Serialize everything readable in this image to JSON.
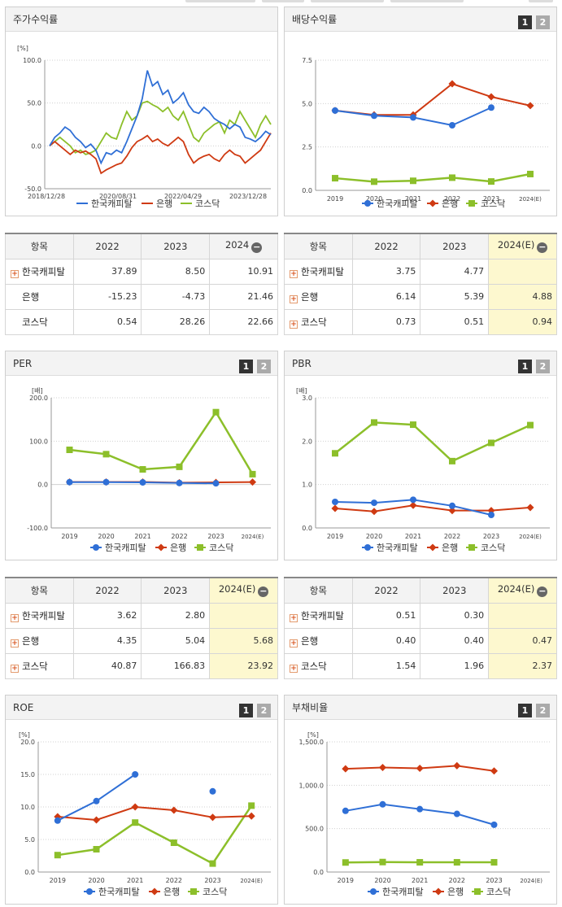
{
  "colors": {
    "kc": "#2f6fd6",
    "bank": "#cf3a12",
    "kosdaq": "#8cbf2a"
  },
  "legend": [
    "한국캐피탈",
    "은행",
    "코스닥"
  ],
  "panels": {
    "stock": {
      "title": "주가수익률"
    },
    "div": {
      "title": "배당수익률"
    },
    "per": {
      "title": "PER"
    },
    "pbr": {
      "title": "PBR"
    },
    "roe": {
      "title": "ROE"
    },
    "debt": {
      "title": "부채비율"
    }
  },
  "btn1": "1",
  "btn2": "2",
  "tables": {
    "t1": {
      "head": [
        "항목",
        "2022",
        "2023",
        "2024"
      ],
      "rows": [
        {
          "label": "한국캐피탈",
          "plus": true,
          "v": [
            "37.89",
            "8.50",
            "10.91"
          ]
        },
        {
          "label": "은행",
          "plus": false,
          "v": [
            "-15.23",
            "-4.73",
            "21.46"
          ]
        },
        {
          "label": "코스닥",
          "plus": false,
          "v": [
            "0.54",
            "28.26",
            "22.66"
          ]
        }
      ]
    },
    "t2": {
      "head": [
        "항목",
        "2022",
        "2023",
        "2024(E)"
      ],
      "rows": [
        {
          "label": "한국캐피탈",
          "plus": true,
          "v": [
            "3.75",
            "4.77",
            ""
          ]
        },
        {
          "label": "은행",
          "plus": true,
          "v": [
            "6.14",
            "5.39",
            "4.88"
          ]
        },
        {
          "label": "코스닥",
          "plus": true,
          "v": [
            "0.73",
            "0.51",
            "0.94"
          ]
        }
      ]
    },
    "t3": {
      "head": [
        "항목",
        "2022",
        "2023",
        "2024(E)"
      ],
      "rows": [
        {
          "label": "한국캐피탈",
          "plus": true,
          "v": [
            "3.62",
            "2.80",
            ""
          ]
        },
        {
          "label": "은행",
          "plus": true,
          "v": [
            "4.35",
            "5.04",
            "5.68"
          ]
        },
        {
          "label": "코스닥",
          "plus": true,
          "v": [
            "40.87",
            "166.83",
            "23.92"
          ]
        }
      ]
    },
    "t4": {
      "head": [
        "항목",
        "2022",
        "2023",
        "2024(E)"
      ],
      "rows": [
        {
          "label": "한국캐피탈",
          "plus": true,
          "v": [
            "0.51",
            "0.30",
            ""
          ]
        },
        {
          "label": "은행",
          "plus": true,
          "v": [
            "0.40",
            "0.40",
            "0.47"
          ]
        },
        {
          "label": "코스닥",
          "plus": true,
          "v": [
            "1.54",
            "1.96",
            "2.37"
          ]
        }
      ]
    }
  },
  "chart_data": [
    {
      "id": "stock",
      "type": "line",
      "unit": "[%]",
      "ylim": [
        -50,
        100
      ],
      "yticks": [
        "100.0",
        "50.0",
        "0.0",
        "-50.0"
      ],
      "xticks": [
        "2018/12/28",
        "2020/08/31",
        "2022/04/29",
        "2023/12/28"
      ],
      "x_count": 130,
      "series": [
        {
          "name": "한국캐피탈",
          "key": "kc",
          "points": [
            [
              0,
              0
            ],
            [
              3,
              10
            ],
            [
              6,
              15
            ],
            [
              9,
              22
            ],
            [
              12,
              18
            ],
            [
              15,
              10
            ],
            [
              18,
              5
            ],
            [
              21,
              -2
            ],
            [
              24,
              2
            ],
            [
              27,
              -5
            ],
            [
              30,
              -20
            ],
            [
              33,
              -8
            ],
            [
              36,
              -10
            ],
            [
              39,
              -5
            ],
            [
              42,
              -8
            ],
            [
              45,
              5
            ],
            [
              48,
              20
            ],
            [
              51,
              35
            ],
            [
              54,
              55
            ],
            [
              57,
              88
            ],
            [
              60,
              70
            ],
            [
              63,
              75
            ],
            [
              66,
              60
            ],
            [
              69,
              65
            ],
            [
              72,
              50
            ],
            [
              75,
              55
            ],
            [
              78,
              62
            ],
            [
              81,
              48
            ],
            [
              84,
              40
            ],
            [
              87,
              38
            ],
            [
              90,
              45
            ],
            [
              93,
              40
            ],
            [
              96,
              32
            ],
            [
              99,
              28
            ],
            [
              102,
              25
            ],
            [
              105,
              20
            ],
            [
              108,
              25
            ],
            [
              111,
              22
            ],
            [
              114,
              10
            ],
            [
              117,
              8
            ],
            [
              120,
              5
            ],
            [
              123,
              10
            ],
            [
              126,
              17
            ],
            [
              129,
              13
            ]
          ]
        },
        {
          "name": "은행",
          "key": "bank",
          "points": [
            [
              0,
              0
            ],
            [
              3,
              5
            ],
            [
              6,
              0
            ],
            [
              9,
              -5
            ],
            [
              12,
              -10
            ],
            [
              15,
              -5
            ],
            [
              18,
              -8
            ],
            [
              21,
              -6
            ],
            [
              24,
              -10
            ],
            [
              27,
              -15
            ],
            [
              30,
              -32
            ],
            [
              33,
              -28
            ],
            [
              36,
              -25
            ],
            [
              39,
              -22
            ],
            [
              42,
              -20
            ],
            [
              45,
              -12
            ],
            [
              48,
              -2
            ],
            [
              51,
              5
            ],
            [
              54,
              8
            ],
            [
              57,
              12
            ],
            [
              60,
              5
            ],
            [
              63,
              8
            ],
            [
              66,
              3
            ],
            [
              69,
              0
            ],
            [
              72,
              5
            ],
            [
              75,
              10
            ],
            [
              78,
              5
            ],
            [
              81,
              -10
            ],
            [
              84,
              -20
            ],
            [
              87,
              -15
            ],
            [
              90,
              -12
            ],
            [
              93,
              -10
            ],
            [
              96,
              -15
            ],
            [
              99,
              -18
            ],
            [
              102,
              -10
            ],
            [
              105,
              -5
            ],
            [
              108,
              -10
            ],
            [
              111,
              -12
            ],
            [
              114,
              -20
            ],
            [
              117,
              -15
            ],
            [
              120,
              -10
            ],
            [
              123,
              -5
            ],
            [
              126,
              5
            ],
            [
              129,
              15
            ]
          ]
        },
        {
          "name": "코스닥",
          "key": "kosdaq",
          "points": [
            [
              0,
              0
            ],
            [
              3,
              5
            ],
            [
              6,
              10
            ],
            [
              9,
              5
            ],
            [
              12,
              0
            ],
            [
              15,
              -8
            ],
            [
              18,
              -5
            ],
            [
              21,
              -10
            ],
            [
              24,
              -8
            ],
            [
              27,
              -5
            ],
            [
              30,
              5
            ],
            [
              33,
              15
            ],
            [
              36,
              10
            ],
            [
              39,
              8
            ],
            [
              42,
              25
            ],
            [
              45,
              40
            ],
            [
              48,
              30
            ],
            [
              51,
              35
            ],
            [
              54,
              50
            ],
            [
              57,
              52
            ],
            [
              60,
              48
            ],
            [
              63,
              45
            ],
            [
              66,
              40
            ],
            [
              69,
              45
            ],
            [
              72,
              35
            ],
            [
              75,
              30
            ],
            [
              78,
              40
            ],
            [
              81,
              25
            ],
            [
              84,
              10
            ],
            [
              87,
              5
            ],
            [
              90,
              15
            ],
            [
              93,
              20
            ],
            [
              96,
              25
            ],
            [
              99,
              28
            ],
            [
              102,
              15
            ],
            [
              105,
              30
            ],
            [
              108,
              25
            ],
            [
              111,
              40
            ],
            [
              114,
              30
            ],
            [
              117,
              20
            ],
            [
              120,
              10
            ],
            [
              123,
              25
            ],
            [
              126,
              35
            ],
            [
              129,
              25
            ]
          ]
        }
      ]
    },
    {
      "id": "div",
      "type": "line",
      "ylim": [
        0,
        7.5
      ],
      "yticks": [
        "7.5",
        "5.0",
        "2.5",
        "0.0"
      ],
      "categories": [
        "2019",
        "2020",
        "2021",
        "2022",
        "2023",
        "2024(E)"
      ],
      "series": [
        {
          "name": "한국캐피탈",
          "key": "kc",
          "values": [
            4.6,
            4.3,
            4.2,
            3.75,
            4.77,
            null
          ]
        },
        {
          "name": "은행",
          "key": "bank",
          "values": [
            4.6,
            4.35,
            4.35,
            6.14,
            5.39,
            4.88
          ]
        },
        {
          "name": "코스닥",
          "key": "kosdaq",
          "values": [
            0.7,
            0.5,
            0.55,
            0.73,
            0.51,
            0.94
          ]
        }
      ]
    },
    {
      "id": "per",
      "type": "line",
      "unit": "[배]",
      "ylim": [
        -100,
        200
      ],
      "yticks": [
        "200.0",
        "100.0",
        "0.0",
        "-100.0"
      ],
      "categories": [
        "2019",
        "2020",
        "2021",
        "2022",
        "2023",
        "2024(E)"
      ],
      "series": [
        {
          "name": "한국캐피탈",
          "key": "kc",
          "values": [
            5.5,
            5.5,
            5.0,
            3.62,
            2.8,
            null
          ]
        },
        {
          "name": "은행",
          "key": "bank",
          "values": [
            6.0,
            6.0,
            6.0,
            4.35,
            5.04,
            5.68
          ]
        },
        {
          "name": "코스닥",
          "key": "kosdaq",
          "values": [
            80,
            70,
            35,
            40.87,
            166.83,
            23.92
          ]
        }
      ]
    },
    {
      "id": "pbr",
      "type": "line",
      "unit": "[배]",
      "ylim": [
        0,
        3
      ],
      "yticks": [
        "3.0",
        "2.0",
        "1.0",
        "0.0"
      ],
      "categories": [
        "2019",
        "2020",
        "2021",
        "2022",
        "2023",
        "2024(E)"
      ],
      "series": [
        {
          "name": "한국캐피탈",
          "key": "kc",
          "values": [
            0.6,
            0.58,
            0.65,
            0.51,
            0.3,
            null
          ]
        },
        {
          "name": "은행",
          "key": "bank",
          "values": [
            0.45,
            0.38,
            0.52,
            0.4,
            0.4,
            0.47
          ]
        },
        {
          "name": "코스닥",
          "key": "kosdaq",
          "values": [
            1.72,
            2.43,
            2.38,
            1.54,
            1.96,
            2.37
          ]
        }
      ]
    },
    {
      "id": "roe",
      "type": "line",
      "unit": "[%]",
      "ylim": [
        0,
        20
      ],
      "yticks": [
        "20.0",
        "15.0",
        "10.0",
        "5.0",
        "0.0"
      ],
      "categories": [
        "2019",
        "2020",
        "2021",
        "2022",
        "2023",
        "2024(E)"
      ],
      "series": [
        {
          "name": "한국캐피탈",
          "key": "kc",
          "values": [
            7.9,
            10.9,
            15.0,
            null,
            12.4,
            null
          ]
        },
        {
          "name": "은행",
          "key": "bank",
          "values": [
            8.5,
            8.0,
            10.0,
            9.5,
            8.4,
            8.6
          ]
        },
        {
          "name": "코스닥",
          "key": "kosdaq",
          "values": [
            2.6,
            3.5,
            7.6,
            4.5,
            1.3,
            10.2
          ]
        }
      ]
    },
    {
      "id": "debt",
      "type": "line",
      "unit": "[%]",
      "ylim": [
        0,
        1500
      ],
      "yticks": [
        "1,500.0",
        "1,000.0",
        "500.0",
        "0.0"
      ],
      "categories": [
        "2019",
        "2020",
        "2021",
        "2022",
        "2023",
        "2024(E)"
      ],
      "series": [
        {
          "name": "한국캐피탈",
          "key": "kc",
          "values": [
            705,
            780,
            725,
            670,
            545,
            null
          ]
        },
        {
          "name": "은행",
          "key": "bank",
          "values": [
            1190,
            1205,
            1195,
            1225,
            1165,
            null
          ]
        },
        {
          "name": "코스닥",
          "key": "kosdaq",
          "values": [
            110,
            115,
            112,
            112,
            112,
            null
          ]
        }
      ]
    }
  ]
}
